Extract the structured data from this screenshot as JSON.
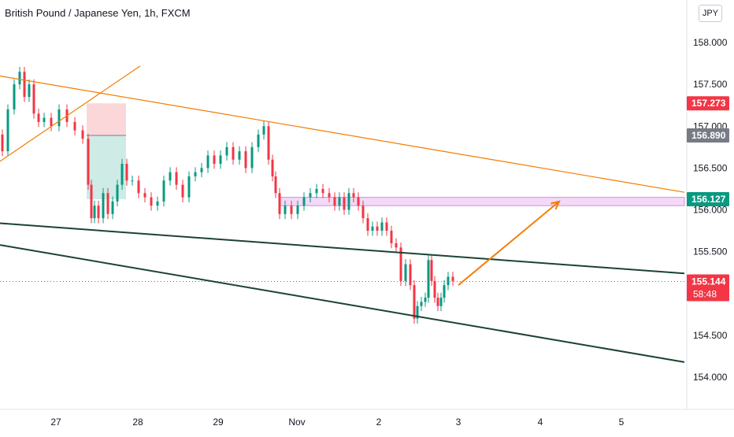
{
  "header": {
    "title": "British Pound / Japanese Yen, 1h, FXCM",
    "currency": "JPY"
  },
  "chart_data": {
    "type": "candlestick",
    "symbol": "British Pound / Japanese Yen",
    "interval": "1h",
    "source": "FXCM",
    "y_axis": {
      "ticks": [
        154.0,
        154.5,
        155.0,
        155.5,
        156.0,
        156.5,
        157.0,
        157.5,
        158.0
      ],
      "tick_labels": [
        "154.000",
        "154.500",
        "155.000",
        "155.500",
        "156.000",
        "156.500",
        "157.000",
        "157.500",
        "158.000"
      ],
      "range": [
        153.55,
        158.3
      ]
    },
    "x_axis": {
      "labels": [
        "27",
        "28",
        "29",
        "Nov",
        "2",
        "3",
        "4",
        "5"
      ]
    },
    "price_labels": [
      {
        "value": 157.273,
        "label": "157.273",
        "color": "#f23645"
      },
      {
        "value": 156.89,
        "label": "156.890",
        "color": "#787b86"
      },
      {
        "value": 156.127,
        "label": "156.127",
        "color": "#089981"
      },
      {
        "value": 155.144,
        "label": "155.144",
        "sublabel": "58:48",
        "color": "#f23645"
      }
    ],
    "candles_close_path": [
      [
        0,
        156.9
      ],
      [
        6,
        156.7
      ],
      [
        14,
        157.2
      ],
      [
        22,
        157.5
      ],
      [
        28,
        157.65
      ],
      [
        34,
        157.35
      ],
      [
        40,
        157.5
      ],
      [
        46,
        157.15
      ],
      [
        52,
        157.05
      ],
      [
        60,
        157.1
      ],
      [
        70,
        157.0
      ],
      [
        80,
        157.2
      ],
      [
        90,
        157.05
      ],
      [
        100,
        156.95
      ],
      [
        110,
        156.85
      ],
      [
        114,
        156.3
      ],
      [
        118,
        155.9
      ],
      [
        122,
        156.05
      ],
      [
        128,
        155.9
      ],
      [
        134,
        156.2
      ],
      [
        140,
        155.95
      ],
      [
        146,
        156.1
      ],
      [
        152,
        156.3
      ],
      [
        158,
        156.55
      ],
      [
        164,
        156.35
      ],
      [
        172,
        156.35
      ],
      [
        180,
        156.2
      ],
      [
        188,
        156.15
      ],
      [
        196,
        156.05
      ],
      [
        204,
        156.1
      ],
      [
        212,
        156.35
      ],
      [
        220,
        156.45
      ],
      [
        228,
        156.3
      ],
      [
        236,
        156.15
      ],
      [
        244,
        156.4
      ],
      [
        252,
        156.45
      ],
      [
        260,
        156.5
      ],
      [
        268,
        156.65
      ],
      [
        276,
        156.55
      ],
      [
        284,
        156.65
      ],
      [
        292,
        156.75
      ],
      [
        300,
        156.6
      ],
      [
        308,
        156.7
      ],
      [
        316,
        156.5
      ],
      [
        324,
        156.75
      ],
      [
        332,
        156.9
      ],
      [
        338,
        157.0
      ],
      [
        344,
        156.6
      ],
      [
        348,
        156.4
      ],
      [
        352,
        156.2
      ],
      [
        358,
        155.95
      ],
      [
        366,
        156.05
      ],
      [
        374,
        155.95
      ],
      [
        382,
        156.05
      ],
      [
        390,
        156.15
      ],
      [
        398,
        156.2
      ],
      [
        406,
        156.25
      ],
      [
        414,
        156.2
      ],
      [
        422,
        156.15
      ],
      [
        428,
        156.05
      ],
      [
        434,
        156.15
      ],
      [
        440,
        156.0
      ],
      [
        446,
        156.2
      ],
      [
        452,
        156.15
      ],
      [
        458,
        156.05
      ],
      [
        464,
        155.9
      ],
      [
        470,
        155.75
      ],
      [
        476,
        155.8
      ],
      [
        482,
        155.75
      ],
      [
        488,
        155.85
      ],
      [
        494,
        155.75
      ],
      [
        500,
        155.6
      ],
      [
        506,
        155.55
      ],
      [
        512,
        155.15
      ],
      [
        518,
        155.35
      ],
      [
        524,
        155.1
      ],
      [
        528,
        154.7
      ],
      [
        532,
        154.85
      ],
      [
        538,
        154.9
      ],
      [
        542,
        154.95
      ],
      [
        546,
        155.4
      ],
      [
        550,
        155.15
      ],
      [
        554,
        154.95
      ],
      [
        558,
        154.85
      ],
      [
        562,
        154.95
      ],
      [
        566,
        155.1
      ],
      [
        572,
        155.2
      ],
      [
        578,
        155.15
      ]
    ],
    "annotations": {
      "trendlines": [
        {
          "name": "upper-channel-line",
          "color": "#f57c00",
          "points": [
            [
              0,
              157.6
            ],
            [
              869,
              156.21
            ]
          ]
        },
        {
          "name": "rising-line",
          "color": "#f57c00",
          "points": [
            [
              0,
              156.58
            ],
            [
              178,
              157.72
            ]
          ]
        },
        {
          "name": "lower-channel-top",
          "color": "#1b4332",
          "points": [
            [
              0,
              155.84
            ],
            [
              869,
              155.24
            ]
          ]
        },
        {
          "name": "lower-channel-bottom",
          "color": "#1b4332",
          "points": [
            [
              0,
              155.58
            ],
            [
              869,
              154.18
            ]
          ]
        }
      ],
      "zone": {
        "color": "#e1bee7",
        "from": 156.05,
        "to": 156.15,
        "x_start": 354
      },
      "position_box": {
        "entry": 156.89,
        "stop": 157.273,
        "target": 156.127,
        "x_start": 110,
        "x_end": 160
      },
      "arrow": {
        "color": "#f57c00",
        "from": [
          582,
          155.1
        ],
        "to": [
          710,
          156.1
        ]
      },
      "current_price_line": 155.144
    }
  }
}
